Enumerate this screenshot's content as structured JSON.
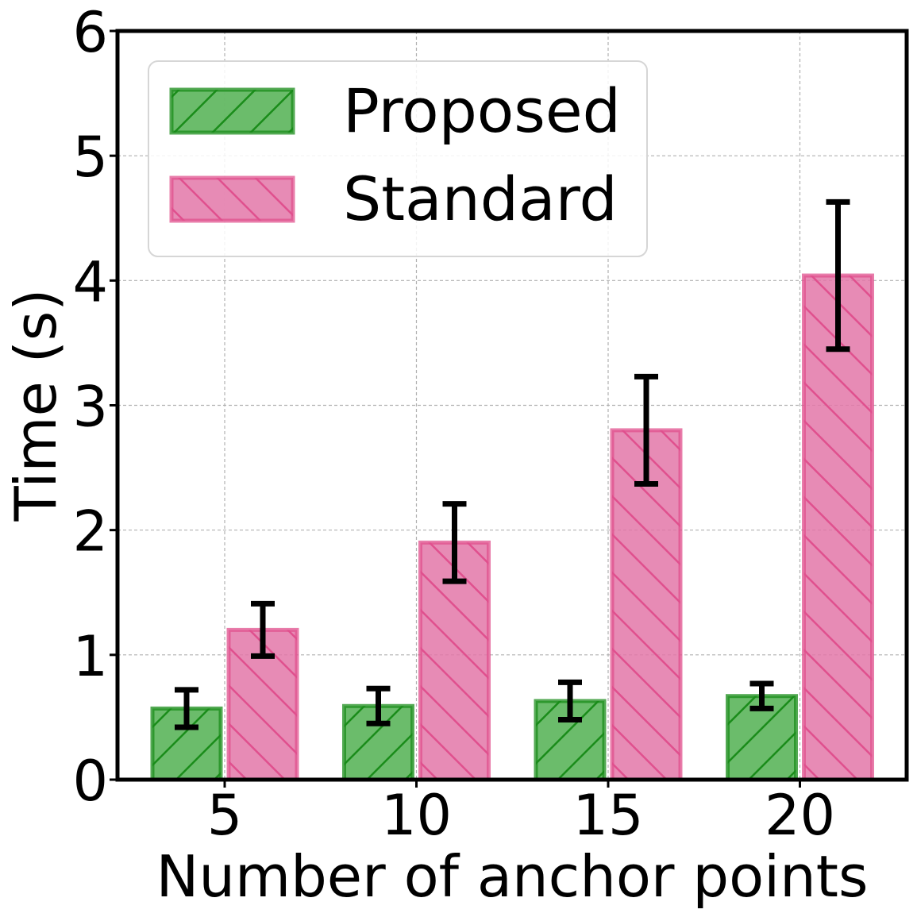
{
  "chart_data": {
    "type": "bar",
    "categories": [
      "5",
      "10",
      "15",
      "20"
    ],
    "xlabel": "Number of anchor points",
    "ylabel": "Time (s)",
    "ylim": [
      0,
      6
    ],
    "yticks": [
      "0",
      "1",
      "2",
      "3",
      "4",
      "5",
      "6"
    ],
    "grid": true,
    "legend_position": "top-left",
    "series": [
      {
        "name": "Proposed",
        "values": [
          0.57,
          0.59,
          0.63,
          0.67
        ],
        "errors": [
          0.15,
          0.14,
          0.15,
          0.1
        ],
        "color": "#2ca02c",
        "edge_color": "#1a8c1a",
        "hatch": "forward-diagonal"
      },
      {
        "name": "Standard",
        "values": [
          1.2,
          1.9,
          2.8,
          4.04
        ],
        "errors": [
          0.21,
          0.31,
          0.43,
          0.59
        ],
        "color": "#e377a8",
        "edge_color": "#e0508e",
        "hatch": "backward-diagonal"
      }
    ]
  }
}
